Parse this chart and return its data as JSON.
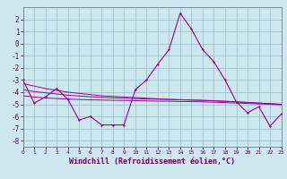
{
  "xlabel": "Windchill (Refroidissement éolien,°C)",
  "bg_color": "#cce8ee",
  "line_color": "#990099",
  "grid_color": "#99bbcc",
  "x_values": [
    0,
    1,
    2,
    3,
    4,
    5,
    6,
    7,
    8,
    9,
    10,
    11,
    12,
    13,
    14,
    15,
    16,
    17,
    18,
    19,
    20,
    21,
    22,
    23
  ],
  "y_main": [
    -3.0,
    -4.9,
    -4.4,
    -3.7,
    -4.6,
    -6.3,
    -6.0,
    -6.7,
    -6.7,
    -6.7,
    -3.8,
    -3.0,
    -1.7,
    -0.5,
    2.5,
    1.2,
    -0.5,
    -1.5,
    -3.0,
    -4.8,
    -5.7,
    -5.2,
    -6.8,
    -5.8
  ],
  "y_trend1": [
    -3.3,
    -3.5,
    -3.7,
    -3.85,
    -4.0,
    -4.1,
    -4.2,
    -4.3,
    -4.35,
    -4.4,
    -4.45,
    -4.5,
    -4.55,
    -4.6,
    -4.62,
    -4.65,
    -4.68,
    -4.7,
    -4.75,
    -4.8,
    -4.85,
    -4.9,
    -4.95,
    -5.0
  ],
  "y_trend2": [
    -3.8,
    -3.95,
    -4.05,
    -4.15,
    -4.25,
    -4.32,
    -4.38,
    -4.43,
    -4.47,
    -4.5,
    -4.53,
    -4.56,
    -4.58,
    -4.6,
    -4.63,
    -4.65,
    -4.68,
    -4.72,
    -4.76,
    -4.8,
    -4.85,
    -4.9,
    -4.95,
    -5.0
  ],
  "y_trend3": [
    -4.3,
    -4.4,
    -4.48,
    -4.53,
    -4.57,
    -4.6,
    -4.63,
    -4.65,
    -4.67,
    -4.68,
    -4.7,
    -4.72,
    -4.74,
    -4.75,
    -4.77,
    -4.78,
    -4.8,
    -4.83,
    -4.86,
    -4.9,
    -4.93,
    -4.97,
    -5.0,
    -5.05
  ],
  "ylim": [
    -8.5,
    3.0
  ],
  "xlim": [
    0,
    23
  ],
  "yticks": [
    -8,
    -7,
    -6,
    -5,
    -4,
    -3,
    -2,
    -1,
    0,
    1,
    2
  ],
  "xticks": [
    0,
    1,
    2,
    3,
    4,
    5,
    6,
    7,
    8,
    9,
    10,
    11,
    12,
    13,
    14,
    15,
    16,
    17,
    18,
    19,
    20,
    21,
    22,
    23
  ]
}
